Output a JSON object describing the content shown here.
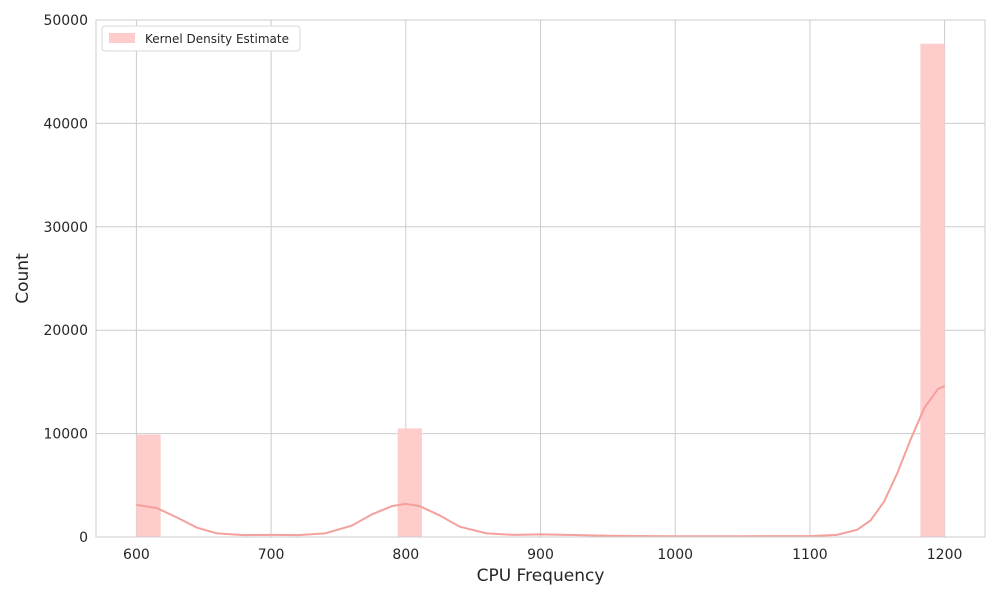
{
  "chart_data": {
    "type": "bar",
    "title": "",
    "xlabel": "CPU Frequency",
    "ylabel": "Count",
    "xlim": [
      570,
      1230
    ],
    "ylim": [
      0,
      50000
    ],
    "xticks": [
      600,
      700,
      800,
      900,
      1000,
      1100,
      1200
    ],
    "yticks": [
      0,
      10000,
      20000,
      30000,
      40000,
      50000
    ],
    "grid": true,
    "legend": {
      "placement": "top-left",
      "entries": [
        "Kernel Density Estimate"
      ]
    },
    "colors": {
      "bar": "#ffcccc",
      "kde": "#f4a09c",
      "grid": "#cccccc",
      "spine": "#cccccc"
    },
    "bins": [
      {
        "x0": 600,
        "x1": 618,
        "count": 9900
      },
      {
        "x0": 794,
        "x1": 812,
        "count": 10500
      },
      {
        "x0": 1182,
        "x1": 1200,
        "count": 47700
      }
    ],
    "kde": {
      "x": [
        600,
        615,
        630,
        645,
        660,
        680,
        700,
        720,
        740,
        760,
        775,
        790,
        800,
        810,
        825,
        840,
        860,
        880,
        900,
        920,
        950,
        1000,
        1050,
        1100,
        1120,
        1135,
        1145,
        1155,
        1165,
        1175,
        1185,
        1195,
        1200
      ],
      "y": [
        3100,
        2800,
        1900,
        900,
        350,
        180,
        200,
        180,
        350,
        1100,
        2200,
        3000,
        3200,
        3000,
        2100,
        1000,
        350,
        200,
        250,
        200,
        120,
        80,
        80,
        90,
        200,
        700,
        1600,
        3400,
        6200,
        9500,
        12500,
        14300,
        14600
      ]
    }
  }
}
